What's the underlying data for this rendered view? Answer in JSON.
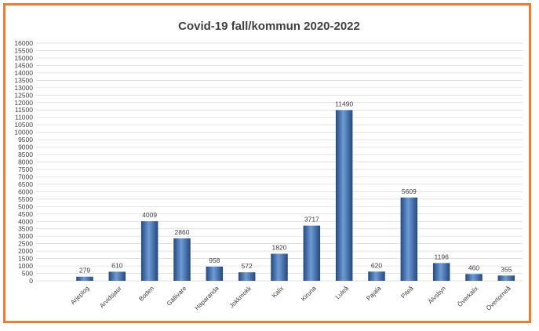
{
  "chart_data": {
    "type": "bar",
    "title": "Covid-19 fall/kommun 2020-2022",
    "xlabel": "",
    "ylabel": "",
    "ylim": [
      0,
      16000
    ],
    "ytick_step": 500,
    "grid": true,
    "legend": "none",
    "categories": [
      "",
      "Arjeplog",
      "Arvidsjaur",
      "Boden",
      "Gällivare",
      "Haparanda",
      "Jokkmokk",
      "Kalix",
      "Kiruna",
      "Luleå",
      "Pajala",
      "Piteå",
      "Älvsbyn",
      "Överkalix",
      "Övertorneå"
    ],
    "values": [
      null,
      279,
      610,
      4009,
      2860,
      958,
      572,
      1820,
      3717,
      11490,
      620,
      5609,
      1196,
      460,
      355
    ],
    "colors": {
      "bar": "#3D6FB5",
      "bar_light": "#6E9BD6",
      "bar_dark": "#24497E",
      "border": "#ED7D31",
      "grid": "#D9D9D9"
    }
  }
}
